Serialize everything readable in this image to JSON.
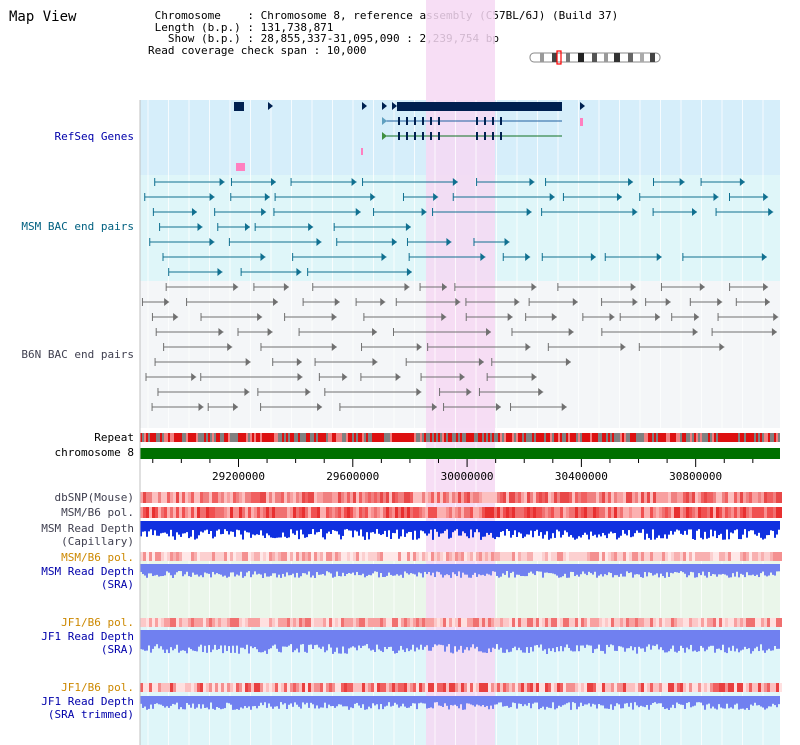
{
  "map_title": "Map View",
  "info": {
    "line1": " Chromosome    : Chromosome 8, reference assembly (C57BL/6J) (Build 37)",
    "line2": " Length (b.p.) : 131,738,871",
    "line3": "   Show (b.p.) : 28,855,337-31,095,090 : 2,239,754 bp",
    "line4": "Read coverage check span : 10,000"
  },
  "tracks": {
    "refseq": "RefSeq Genes",
    "msm_bac": "MSM BAC end pairs",
    "b6n_bac": "B6N BAC end pairs",
    "repeat": "Repeat",
    "chromosome": "chromosome 8",
    "dbsnp": "dbSNP(Mouse)",
    "msm_b6_pol_1": "MSM/B6 pol.",
    "msm_rd_cap_1": "MSM Read Depth",
    "msm_rd_cap_2": "(Capillary)",
    "msm_b6_pol_2": "MSM/B6 pol.",
    "msm_rd_sra_1": "MSM Read Depth",
    "msm_rd_sra_2": "(SRA)",
    "jf1_b6_pol_1": "JF1/B6 pol.",
    "jf1_rd_sra_1": "JF1 Read Depth",
    "jf1_rd_sra_2": "(SRA)",
    "jf1_b6_pol_2": "JF1/B6 pol.",
    "jf1_rd_trim_1": "JF1 Read Depth",
    "jf1_rd_trim_2": "(SRA trimmed)"
  },
  "axis": {
    "ticks": [
      "29200000",
      "29600000",
      "30000000",
      "30400000",
      "30800000"
    ],
    "range": [
      28855337,
      31095090
    ]
  },
  "colors": {
    "highlight": "#f6d8f3",
    "refseq_bg": "#d6eefa",
    "track_bg": "#dff6f9",
    "gene": "#002050",
    "msm_feature": "#107090",
    "b6n_feature": "#707070",
    "chromosome": "#007000",
    "depth_blue": "#1030e0",
    "sra_blue": "#7080f0"
  }
}
